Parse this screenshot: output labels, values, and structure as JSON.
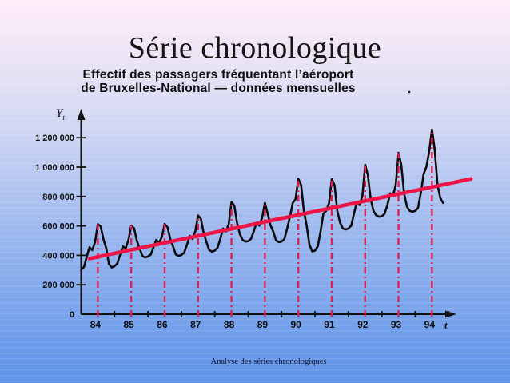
{
  "slide": {
    "title": "Série chronologique",
    "subtitle_line1": "Effectif des passagers fréquentant l’aéroport",
    "subtitle_line2": "de Bruxelles-National — données mensuelles",
    "stray_period": ".",
    "footer": "Analyse des séries chronologiques"
  },
  "colors": {
    "series_line": "#0b0b0b",
    "trend_line": "#ec1545",
    "peak_dash_line": "#df1f55",
    "axis": "#121212",
    "tick_text": "#101010"
  },
  "chart_data": {
    "type": "line",
    "title": "Effectif des passagers fréquentant l’aéroport de Bruxelles-National — données mensuelles",
    "xlabel": "t",
    "ylabel": "Yt",
    "y_axis_symbol": "Y",
    "y_axis_subscript": "t",
    "x_axis_symbol": "t",
    "ylim": [
      0,
      1300000
    ],
    "x_tick_labels": [
      "84",
      "85",
      "86",
      "87",
      "88",
      "89",
      "90",
      "91",
      "92",
      "93",
      "94"
    ],
    "y_ticks": [
      {
        "label": "0",
        "value": 0
      },
      {
        "label": "200 000",
        "value": 200000
      },
      {
        "label": "400 000",
        "value": 400000
      },
      {
        "label": "600 000",
        "value": 600000
      },
      {
        "label": "800 000",
        "value": 800000
      },
      {
        "label": "1 000 000",
        "value": 1000000
      },
      {
        "label": "1 200 000",
        "value": 1200000
      }
    ],
    "start_year": 1984,
    "frequency": "monthly",
    "series": [
      {
        "name": "effectif mensuel des passagers",
        "monthly_values": [
          305000,
          320000,
          390000,
          455000,
          435000,
          490000,
          612000,
          598000,
          510000,
          450000,
          340000,
          318000,
          326000,
          345000,
          405000,
          462000,
          446000,
          505000,
          602000,
          585000,
          500000,
          446000,
          396000,
          386000,
          392000,
          405000,
          455000,
          505000,
          485000,
          525000,
          613000,
          592000,
          512000,
          462000,
          406000,
          396000,
          402000,
          418000,
          472000,
          532000,
          512000,
          562000,
          672000,
          648000,
          552000,
          492000,
          436000,
          425000,
          432000,
          452000,
          512000,
          582000,
          562000,
          612000,
          762000,
          738000,
          622000,
          545000,
          505000,
          494000,
          496000,
          512000,
          562000,
          622000,
          602000,
          655000,
          756000,
          682000,
          605000,
          562000,
          502000,
          490000,
          494000,
          512000,
          582000,
          662000,
          756000,
          782000,
          920000,
          878000,
          702000,
          602000,
          472000,
          426000,
          432000,
          462000,
          562000,
          682000,
          702000,
          752000,
          918000,
          878000,
          702000,
          622000,
          582000,
          576000,
          582000,
          602000,
          682000,
          762000,
          742000,
          802000,
          1016000,
          946000,
          782000,
          702000,
          672000,
          662000,
          666000,
          682000,
          742000,
          822000,
          802000,
          882000,
          1098000,
          1016000,
          822000,
          732000,
          702000,
          696000,
          702000,
          722000,
          822000,
          952000,
          1002000,
          1106000,
          1256000,
          1120000,
          880000,
          790000,
          756000
        ]
      }
    ],
    "trend": {
      "name": "droite de tendance",
      "start_month_index": 3,
      "start_value": 378000,
      "end_month_index": 140,
      "end_value": 920000
    },
    "peak_marker_years": [
      1984,
      1985,
      1986,
      1987,
      1988,
      1989,
      1990,
      1991,
      1992,
      1993,
      1994
    ],
    "legend": "none",
    "grid": false
  }
}
